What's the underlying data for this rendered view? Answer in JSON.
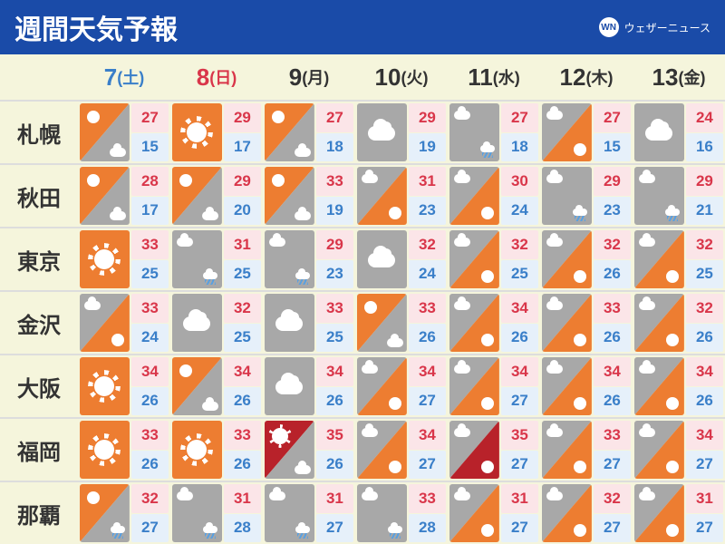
{
  "title": "週間天気予報",
  "brand": {
    "logo_text": "WN",
    "name": "ウェザーニュース"
  },
  "colors": {
    "header_bg": "#1a4ba8",
    "page_bg": "#f5f5dc",
    "orange": "#ed7d31",
    "gray": "#a8a8a8",
    "red": "#b8222a",
    "hi_text": "#d9364a",
    "lo_text": "#3a7fc9",
    "hi_bg": "#fbe5e8",
    "lo_bg": "#e6f0fa",
    "sat_color": "#3a7fc9",
    "sun_color": "#d9364a",
    "weekday_color": "#333333"
  },
  "days": [
    {
      "num": "7",
      "dow": "(土)",
      "color": "#3a7fc9"
    },
    {
      "num": "8",
      "dow": "(日)",
      "color": "#d9364a"
    },
    {
      "num": "9",
      "dow": "(月)",
      "color": "#333333"
    },
    {
      "num": "10",
      "dow": "(火)",
      "color": "#333333"
    },
    {
      "num": "11",
      "dow": "(水)",
      "color": "#333333"
    },
    {
      "num": "12",
      "dow": "(木)",
      "color": "#333333"
    },
    {
      "num": "13",
      "dow": "(金)",
      "color": "#333333"
    }
  ],
  "cities": [
    "札幌",
    "秋田",
    "東京",
    "金沢",
    "大阪",
    "福岡",
    "那覇"
  ],
  "grid": [
    [
      {
        "icon": "sun_then_cloud",
        "hi": 27,
        "lo": 15
      },
      {
        "icon": "sunny",
        "hi": 29,
        "lo": 17
      },
      {
        "icon": "sun_then_cloud",
        "hi": 27,
        "lo": 18
      },
      {
        "icon": "cloudy",
        "hi": 29,
        "lo": 19
      },
      {
        "icon": "cloud_then_rain",
        "hi": 27,
        "lo": 18
      },
      {
        "icon": "cloud_then_sun",
        "hi": 27,
        "lo": 15
      },
      {
        "icon": "cloudy",
        "hi": 24,
        "lo": 16
      }
    ],
    [
      {
        "icon": "sun_then_cloud",
        "hi": 28,
        "lo": 17
      },
      {
        "icon": "sun_then_cloud",
        "hi": 29,
        "lo": 20
      },
      {
        "icon": "sun_then_cloud",
        "hi": 33,
        "lo": 19
      },
      {
        "icon": "cloud_then_sun",
        "hi": 31,
        "lo": 23
      },
      {
        "icon": "cloud_then_sun",
        "hi": 30,
        "lo": 24
      },
      {
        "icon": "cloud_then_rain",
        "hi": 29,
        "lo": 23
      },
      {
        "icon": "cloud_then_rain",
        "hi": 29,
        "lo": 21
      }
    ],
    [
      {
        "icon": "sunny",
        "hi": 33,
        "lo": 25
      },
      {
        "icon": "cloud_then_rain",
        "hi": 31,
        "lo": 25
      },
      {
        "icon": "cloud_then_rain",
        "hi": 29,
        "lo": 23
      },
      {
        "icon": "cloudy",
        "hi": 32,
        "lo": 24
      },
      {
        "icon": "cloud_then_sun",
        "hi": 32,
        "lo": 25
      },
      {
        "icon": "cloud_then_sun",
        "hi": 32,
        "lo": 26
      },
      {
        "icon": "cloud_then_sun",
        "hi": 32,
        "lo": 25
      }
    ],
    [
      {
        "icon": "cloud_then_sun",
        "hi": 33,
        "lo": 24
      },
      {
        "icon": "cloudy",
        "hi": 32,
        "lo": 25
      },
      {
        "icon": "cloudy",
        "hi": 33,
        "lo": 25
      },
      {
        "icon": "sun_then_cloud",
        "hi": 33,
        "lo": 26
      },
      {
        "icon": "cloud_then_sun",
        "hi": 34,
        "lo": 26
      },
      {
        "icon": "cloud_then_sun",
        "hi": 33,
        "lo": 26
      },
      {
        "icon": "cloud_then_sun",
        "hi": 32,
        "lo": 26
      }
    ],
    [
      {
        "icon": "sunny",
        "hi": 34,
        "lo": 26
      },
      {
        "icon": "sun_then_cloud",
        "hi": 34,
        "lo": 26
      },
      {
        "icon": "cloudy",
        "hi": 34,
        "lo": 26
      },
      {
        "icon": "cloud_then_sun",
        "hi": 34,
        "lo": 27
      },
      {
        "icon": "cloud_then_sun",
        "hi": 34,
        "lo": 27
      },
      {
        "icon": "cloud_then_sun",
        "hi": 34,
        "lo": 26
      },
      {
        "icon": "cloud_then_sun",
        "hi": 34,
        "lo": 26
      }
    ],
    [
      {
        "icon": "sunny",
        "hi": 33,
        "lo": 26
      },
      {
        "icon": "sunny",
        "hi": 33,
        "lo": 26
      },
      {
        "icon": "heat_cloud",
        "hi": 35,
        "lo": 26
      },
      {
        "icon": "cloud_then_sun",
        "hi": 34,
        "lo": 27
      },
      {
        "icon": "cloud_then_heat",
        "hi": 35,
        "lo": 27
      },
      {
        "icon": "cloud_then_sun",
        "hi": 33,
        "lo": 27
      },
      {
        "icon": "cloud_then_sun",
        "hi": 34,
        "lo": 27
      }
    ],
    [
      {
        "icon": "sun_then_rain",
        "hi": 32,
        "lo": 27
      },
      {
        "icon": "cloud_then_rain",
        "hi": 31,
        "lo": 28
      },
      {
        "icon": "cloud_then_rain",
        "hi": 31,
        "lo": 27
      },
      {
        "icon": "cloud_then_rain",
        "hi": 33,
        "lo": 28
      },
      {
        "icon": "cloud_then_sun",
        "hi": 31,
        "lo": 27
      },
      {
        "icon": "cloud_then_sun",
        "hi": 32,
        "lo": 27
      },
      {
        "icon": "cloud_then_sun",
        "hi": 31,
        "lo": 27
      }
    ]
  ]
}
